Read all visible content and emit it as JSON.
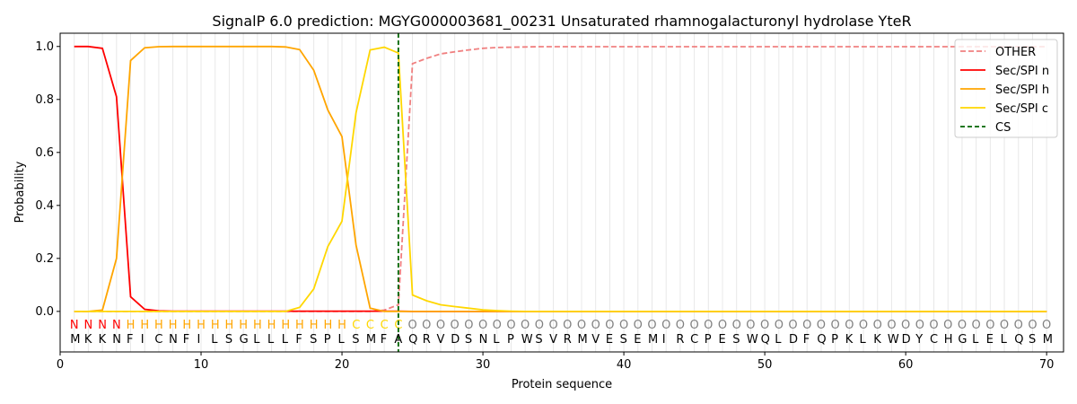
{
  "chart_data": {
    "type": "line",
    "title": "SignalP 6.0 prediction: MGYG000003681_00231 Unsaturated rhamnogalacturonyl hydrolase YteR",
    "xlabel": "Protein sequence",
    "ylabel": "Probability",
    "xlim": [
      0,
      71.2
    ],
    "ylim": [
      -0.153,
      1.05
    ],
    "xticks": [
      0,
      10,
      20,
      30,
      40,
      50,
      60,
      70
    ],
    "yticks": [
      0.0,
      0.2,
      0.4,
      0.6,
      0.8,
      1.0
    ],
    "ytick_labels": [
      "0.0",
      "0.2",
      "0.4",
      "0.6",
      "0.8",
      "1.0"
    ],
    "legend_position": "top-right",
    "sequence": "MKKNFICNFILSGLLLFSPLSMFAQRVDSNLPWSVRMVESEMIRCPESWQLDFQPKLKWDYCHGLELQSM",
    "labels": "NNNNHHHHHHHHHHHHHHHHCCCCOOOOOOOOOOOOOOOOOOOOOOOOOOOOOOOOOOOOOOOOOOOOOO",
    "label_colors": {
      "N": "#ff0000",
      "H": "#ffa500",
      "C": "#ffd700",
      "O": "#808080"
    },
    "cs_position": 24,
    "series": [
      {
        "name": "OTHER",
        "color": "#f08080",
        "dash": true,
        "values": [
          0,
          0,
          0,
          0,
          0,
          0,
          0,
          0,
          0,
          0,
          0,
          0,
          0,
          0,
          0,
          0,
          0,
          0,
          0,
          0,
          0,
          0,
          0.005,
          0.025,
          0.935,
          0.955,
          0.972,
          0.98,
          0.987,
          0.993,
          0.996,
          0.997,
          0.998,
          0.999,
          0.999,
          0.999,
          0.999,
          0.999,
          0.999,
          0.999,
          0.999,
          0.999,
          0.999,
          0.999,
          0.999,
          0.999,
          0.999,
          0.999,
          0.999,
          0.999,
          0.999,
          0.999,
          0.999,
          0.999,
          0.999,
          0.999,
          0.999,
          0.999,
          0.999,
          0.999,
          0.999,
          0.999,
          0.999,
          0.999,
          0.999,
          0.999,
          0.999,
          0.999,
          0.999,
          0.999
        ]
      },
      {
        "name": "Sec/SPI n",
        "color": "#ff0000",
        "dash": false,
        "values": [
          1.0,
          1.0,
          0.993,
          0.81,
          0.055,
          0.008,
          0.002,
          0.001,
          0.001,
          0.001,
          0.001,
          0.001,
          0.001,
          0.001,
          0.001,
          0.001,
          0.001,
          0.001,
          0.001,
          0.001,
          0.001,
          0.001,
          0.001,
          0.001,
          0,
          0,
          0,
          0,
          0,
          0,
          0,
          0,
          0,
          0,
          0,
          0,
          0,
          0,
          0,
          0,
          0,
          0,
          0,
          0,
          0,
          0,
          0,
          0,
          0,
          0,
          0,
          0,
          0,
          0,
          0,
          0,
          0,
          0,
          0,
          0,
          0,
          0,
          0,
          0,
          0,
          0,
          0,
          0,
          0,
          0
        ]
      },
      {
        "name": "Sec/SPI h",
        "color": "#ffa500",
        "dash": false,
        "values": [
          0,
          0,
          0.005,
          0.2,
          0.947,
          0.995,
          0.999,
          1.0,
          1.0,
          1.0,
          1.0,
          1.0,
          1.0,
          1.0,
          1.0,
          0.998,
          0.988,
          0.91,
          0.76,
          0.66,
          0.25,
          0.012,
          0,
          0,
          0,
          0,
          0,
          0,
          0,
          0,
          0,
          0,
          0,
          0,
          0,
          0,
          0,
          0,
          0,
          0,
          0,
          0,
          0,
          0,
          0,
          0,
          0,
          0,
          0,
          0,
          0,
          0,
          0,
          0,
          0,
          0,
          0,
          0,
          0,
          0,
          0,
          0,
          0,
          0,
          0,
          0,
          0,
          0,
          0,
          0
        ]
      },
      {
        "name": "Sec/SPI c",
        "color": "#ffd700",
        "dash": false,
        "values": [
          0,
          0,
          0,
          0,
          0,
          0,
          0,
          0,
          0,
          0,
          0,
          0,
          0,
          0,
          0,
          0,
          0.015,
          0.085,
          0.245,
          0.34,
          0.75,
          0.987,
          0.997,
          0.975,
          0.062,
          0.04,
          0.025,
          0.018,
          0.012,
          0.006,
          0.003,
          0.001,
          0,
          0,
          0,
          0,
          0,
          0,
          0,
          0,
          0,
          0,
          0,
          0,
          0,
          0,
          0,
          0,
          0,
          0,
          0,
          0,
          0,
          0,
          0,
          0,
          0,
          0,
          0,
          0,
          0,
          0,
          0,
          0,
          0,
          0,
          0,
          0,
          0,
          0
        ]
      }
    ],
    "cs_legend": {
      "name": "CS",
      "color": "#006400"
    }
  }
}
